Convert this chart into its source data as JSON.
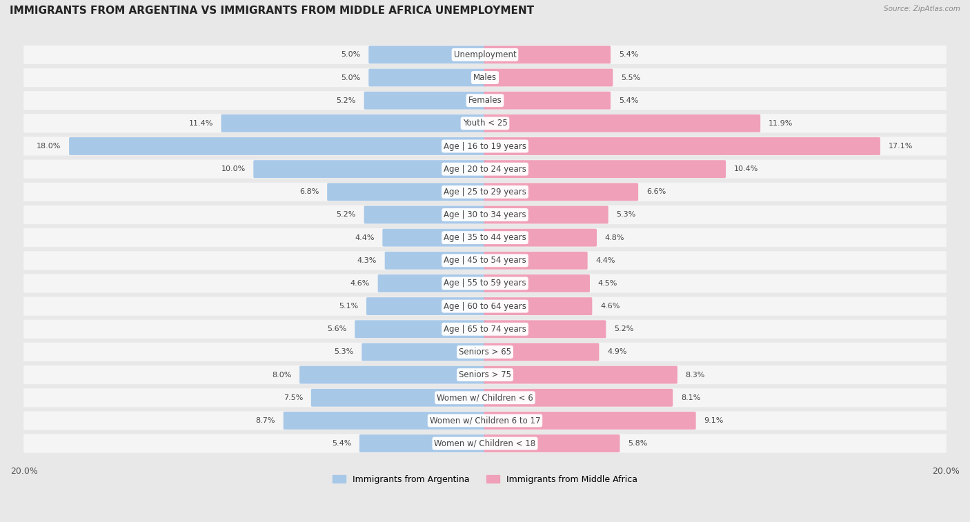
{
  "title": "IMMIGRANTS FROM ARGENTINA VS IMMIGRANTS FROM MIDDLE AFRICA UNEMPLOYMENT",
  "source": "Source: ZipAtlas.com",
  "categories": [
    "Unemployment",
    "Males",
    "Females",
    "Youth < 25",
    "Age | 16 to 19 years",
    "Age | 20 to 24 years",
    "Age | 25 to 29 years",
    "Age | 30 to 34 years",
    "Age | 35 to 44 years",
    "Age | 45 to 54 years",
    "Age | 55 to 59 years",
    "Age | 60 to 64 years",
    "Age | 65 to 74 years",
    "Seniors > 65",
    "Seniors > 75",
    "Women w/ Children < 6",
    "Women w/ Children 6 to 17",
    "Women w/ Children < 18"
  ],
  "left_values": [
    5.0,
    5.0,
    5.2,
    11.4,
    18.0,
    10.0,
    6.8,
    5.2,
    4.4,
    4.3,
    4.6,
    5.1,
    5.6,
    5.3,
    8.0,
    7.5,
    8.7,
    5.4
  ],
  "right_values": [
    5.4,
    5.5,
    5.4,
    11.9,
    17.1,
    10.4,
    6.6,
    5.3,
    4.8,
    4.4,
    4.5,
    4.6,
    5.2,
    4.9,
    8.3,
    8.1,
    9.1,
    5.8
  ],
  "left_color": "#a8c8e8",
  "right_color": "#f0a0b8",
  "left_label": "Immigrants from Argentina",
  "right_label": "Immigrants from Middle Africa",
  "axis_max": 20.0,
  "background_color": "#e8e8e8",
  "row_bg": "#f5f5f5",
  "title_fontsize": 11,
  "label_fontsize": 8.5,
  "value_fontsize": 8
}
